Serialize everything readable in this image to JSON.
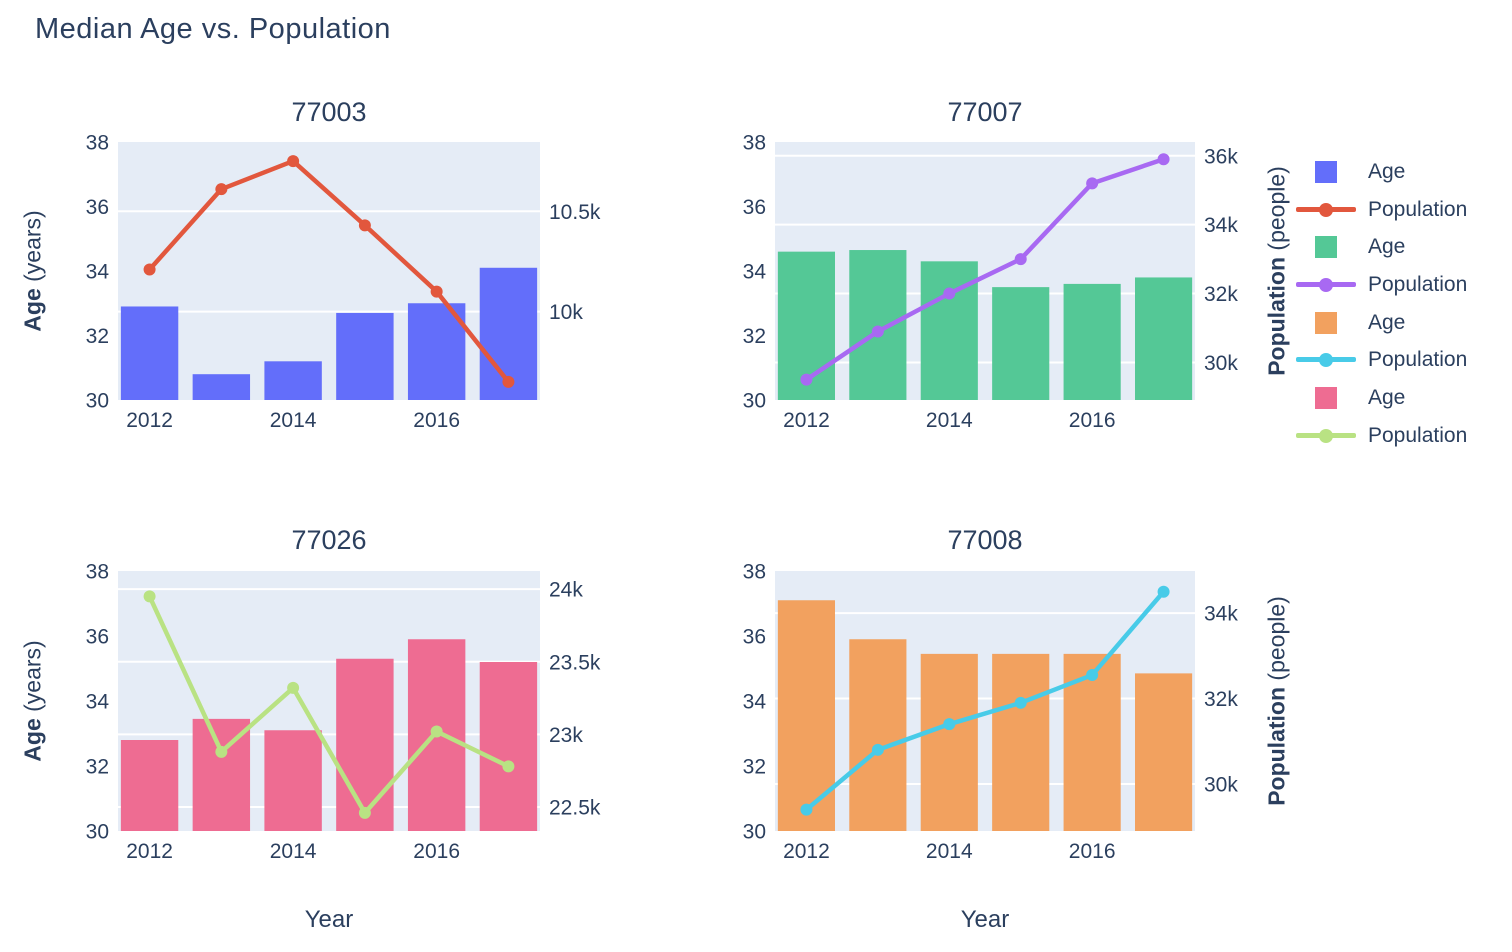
{
  "title": "Median Age vs. Population",
  "figure": {
    "text_color": "#2b3f5e",
    "plot_bg": "#e5ecf6",
    "grid_color": "#ffffff"
  },
  "axis_titles": {
    "y_left_bold": "Age",
    "y_left_rest": " (years)",
    "y_right_bold": "Population",
    "y_right_rest": " (people)",
    "x_bottom": "Year"
  },
  "legend": {
    "position": "right",
    "items": [
      {
        "label": "Age",
        "type": "square",
        "color": "#636efa"
      },
      {
        "label": "Population",
        "type": "line",
        "color": "#e2573d"
      },
      {
        "label": "Age",
        "type": "square",
        "color": "#54c896"
      },
      {
        "label": "Population",
        "type": "line",
        "color": "#a869f2"
      },
      {
        "label": "Age",
        "type": "square",
        "color": "#f2a15f"
      },
      {
        "label": "Population",
        "type": "line",
        "color": "#48cbe8"
      },
      {
        "label": "Age",
        "type": "square",
        "color": "#ee6c92"
      },
      {
        "label": "Population",
        "type": "line",
        "color": "#b9e283"
      }
    ]
  },
  "chart_data": [
    {
      "type": "bar",
      "subtype": "bar+line dual axis",
      "title": "77003",
      "xlabel": "Year",
      "ylabel": "Age (years)",
      "ylabel2": "Population (people)",
      "x": [
        2012,
        2013,
        2014,
        2015,
        2016,
        2017
      ],
      "series": [
        {
          "name": "Age",
          "kind": "bar",
          "axis": "left",
          "color": "#636efa",
          "values": [
            32.9,
            30.8,
            31.2,
            32.7,
            33.0,
            34.1
          ]
        },
        {
          "name": "Population",
          "kind": "line",
          "axis": "right",
          "color": "#e2573d",
          "values": [
            10210,
            10610,
            10750,
            10430,
            10100,
            9650
          ]
        }
      ],
      "left_axis": {
        "range": [
          30,
          38
        ],
        "ticks": [
          30,
          32,
          34,
          36,
          38
        ],
        "tick_labels": [
          "30",
          "32",
          "34",
          "36",
          "38"
        ]
      },
      "right_axis": {
        "range": [
          9560,
          10845
        ],
        "ticks": [
          10000,
          10500
        ],
        "tick_labels": [
          "10k",
          "10.5k"
        ]
      },
      "x_axis": {
        "range": [
          2011.56,
          2017.44
        ],
        "ticks": [
          2012,
          2014,
          2016
        ],
        "tick_labels": [
          "2012",
          "2014",
          "2016"
        ],
        "bar_width": 0.8
      },
      "grid": "on (right-axis ticks)"
    },
    {
      "type": "bar",
      "subtype": "bar+line dual axis",
      "title": "77007",
      "xlabel": "Year",
      "ylabel": "Age (years)",
      "ylabel2": "Population (people)",
      "x": [
        2012,
        2013,
        2014,
        2015,
        2016,
        2017
      ],
      "series": [
        {
          "name": "Age",
          "kind": "bar",
          "axis": "left",
          "color": "#54c896",
          "values": [
            34.6,
            34.65,
            34.3,
            33.5,
            33.6,
            33.8
          ]
        },
        {
          "name": "Population",
          "kind": "line",
          "axis": "right",
          "color": "#a869f2",
          "values": [
            29500,
            30900,
            32000,
            33000,
            35200,
            35900
          ]
        }
      ],
      "left_axis": {
        "range": [
          30,
          38
        ],
        "ticks": [
          30,
          32,
          34,
          36,
          38
        ],
        "tick_labels": [
          "30",
          "32",
          "34",
          "36",
          "38"
        ]
      },
      "right_axis": {
        "range": [
          28910,
          36400
        ],
        "ticks": [
          30000,
          32000,
          34000,
          36000
        ],
        "tick_labels": [
          "30k",
          "32k",
          "34k",
          "36k"
        ]
      },
      "x_axis": {
        "range": [
          2011.56,
          2017.44
        ],
        "ticks": [
          2012,
          2014,
          2016
        ],
        "tick_labels": [
          "2012",
          "2014",
          "2016"
        ],
        "bar_width": 0.8
      },
      "grid": "on (right-axis ticks)"
    },
    {
      "type": "bar",
      "subtype": "bar+line dual axis",
      "title": "77026",
      "xlabel": "Year",
      "ylabel": "Age (years)",
      "ylabel2": "Population (people)",
      "x": [
        2012,
        2013,
        2014,
        2015,
        2016,
        2017
      ],
      "series": [
        {
          "name": "Age",
          "kind": "bar",
          "axis": "left",
          "color": "#ee6c92",
          "values": [
            32.8,
            33.45,
            33.1,
            35.3,
            35.9,
            35.2
          ]
        },
        {
          "name": "Population",
          "kind": "line",
          "axis": "right",
          "color": "#b9e283",
          "values": [
            23950,
            22880,
            23320,
            22460,
            23020,
            22780
          ]
        }
      ],
      "left_axis": {
        "range": [
          30,
          38
        ],
        "ticks": [
          30,
          32,
          34,
          36,
          38
        ],
        "tick_labels": [
          "30",
          "32",
          "34",
          "36",
          "38"
        ]
      },
      "right_axis": {
        "range": [
          22335,
          24125
        ],
        "ticks": [
          22500,
          23000,
          23500,
          24000
        ],
        "tick_labels": [
          "22.5k",
          "23k",
          "23.5k",
          "24k"
        ]
      },
      "x_axis": {
        "range": [
          2011.56,
          2017.44
        ],
        "ticks": [
          2012,
          2014,
          2016
        ],
        "tick_labels": [
          "2012",
          "2014",
          "2016"
        ],
        "bar_width": 0.8
      },
      "grid": "on (right-axis ticks)"
    },
    {
      "type": "bar",
      "subtype": "bar+line dual axis",
      "title": "77008",
      "xlabel": "Year",
      "ylabel": "Age (years)",
      "ylabel2": "Population (people)",
      "x": [
        2012,
        2013,
        2014,
        2015,
        2016,
        2017
      ],
      "series": [
        {
          "name": "Age",
          "kind": "bar",
          "axis": "left",
          "color": "#f2a15f",
          "values": [
            37.1,
            35.9,
            35.45,
            35.45,
            35.45,
            34.85
          ]
        },
        {
          "name": "Population",
          "kind": "line",
          "axis": "right",
          "color": "#48cbe8",
          "values": [
            29400,
            30800,
            31400,
            31900,
            32550,
            34500
          ]
        }
      ],
      "left_axis": {
        "range": [
          30,
          38
        ],
        "ticks": [
          30,
          32,
          34,
          36,
          38
        ],
        "tick_labels": [
          "30",
          "32",
          "34",
          "36",
          "38"
        ]
      },
      "right_axis": {
        "range": [
          28900,
          34985
        ],
        "ticks": [
          30000,
          32000,
          34000
        ],
        "tick_labels": [
          "30k",
          "32k",
          "34k"
        ]
      },
      "x_axis": {
        "range": [
          2011.56,
          2017.44
        ],
        "ticks": [
          2012,
          2014,
          2016
        ],
        "tick_labels": [
          "2012",
          "2014",
          "2016"
        ],
        "bar_width": 0.8
      },
      "grid": "on (right-axis ticks)"
    }
  ]
}
